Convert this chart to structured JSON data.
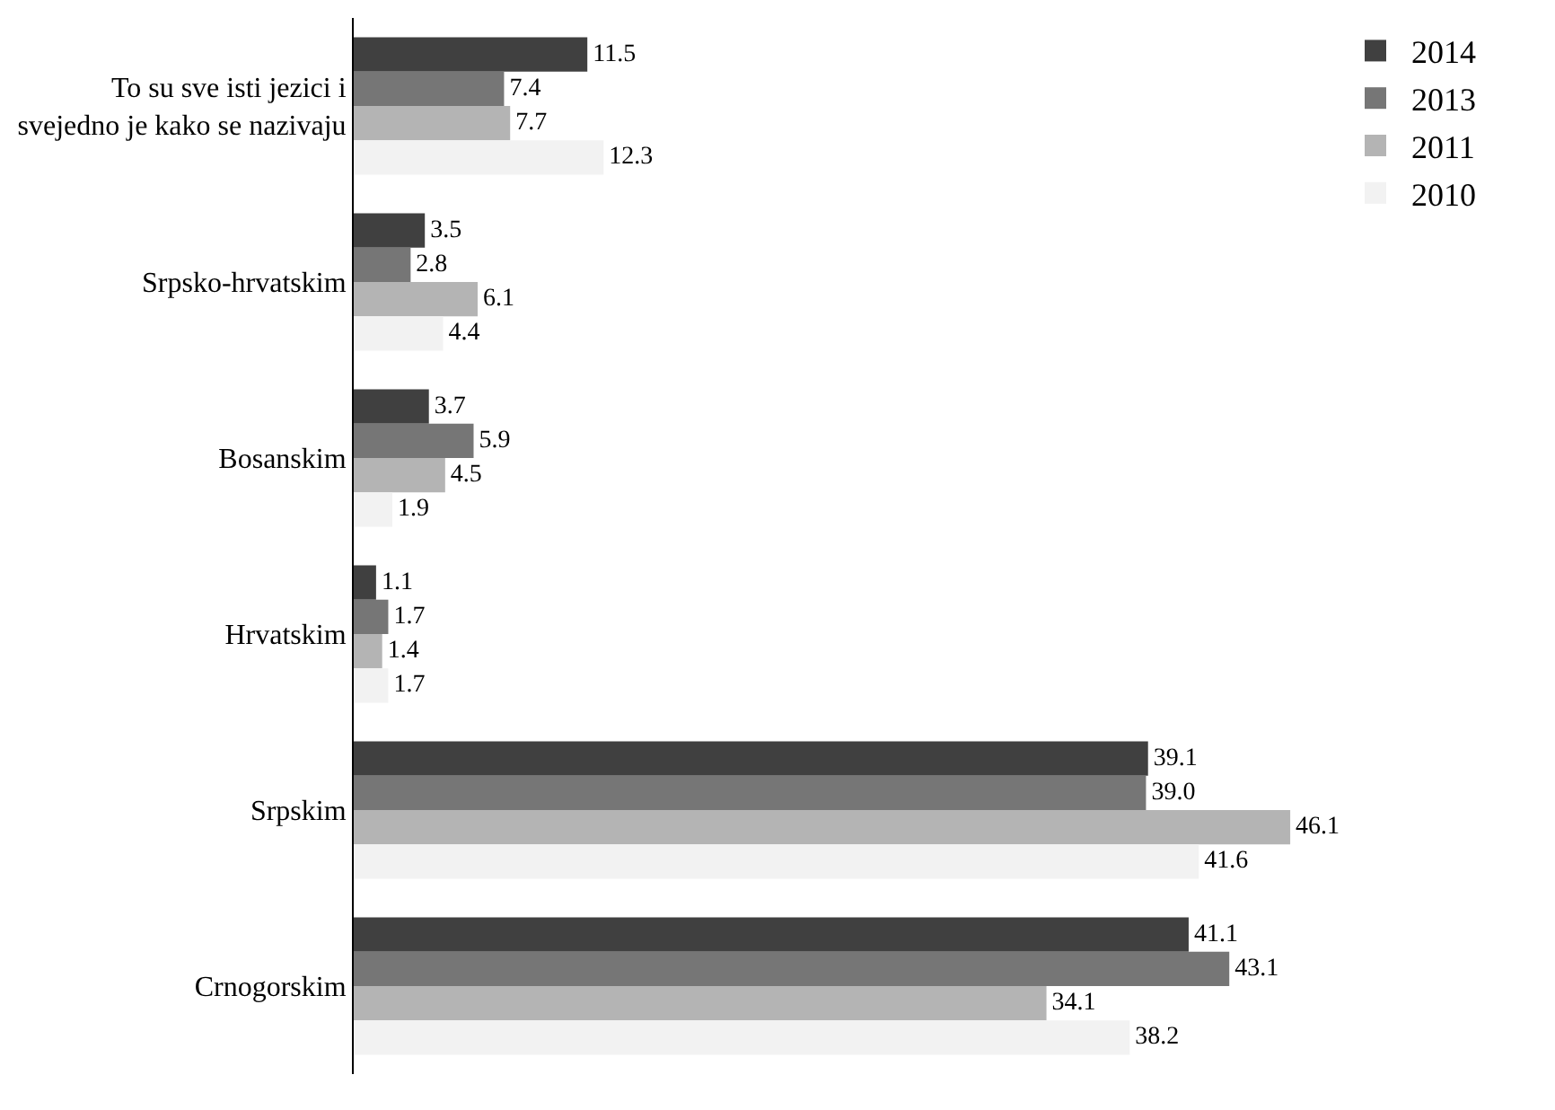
{
  "chart_data": {
    "type": "bar",
    "orientation": "horizontal",
    "legend": "top right",
    "tick_labels": "y",
    "categories": [
      "To su sve isti jezici i svejedno je kako se nazivaju",
      "Srpsko-hrvatskim",
      "Bosanskim",
      "Hrvatskim",
      "Srpskim",
      "Crnogorskim"
    ],
    "series": [
      {
        "name": "2014",
        "color": "#404040",
        "values": [
          11.5,
          3.5,
          3.7,
          1.1,
          39.1,
          41.1
        ],
        "value_labels": [
          "11.5",
          "3.5",
          "3.7",
          "1.1",
          "39.1",
          "41.1"
        ]
      },
      {
        "name": "2013",
        "color": "#767676",
        "values": [
          7.4,
          2.8,
          5.9,
          1.7,
          39.0,
          43.1
        ],
        "value_labels": [
          "7.4",
          "2.8",
          "5.9",
          "1.7",
          "39.0",
          "43.1"
        ]
      },
      {
        "name": "2011",
        "color": "#b4b4b4",
        "values": [
          7.7,
          6.1,
          4.5,
          1.4,
          46.1,
          34.1
        ],
        "value_labels": [
          "7.7",
          "6.1",
          "4.5",
          "1.4",
          "46.1",
          "34.1"
        ]
      },
      {
        "name": "2010",
        "color": "#f2f2f2",
        "values": [
          12.3,
          4.4,
          1.9,
          1.7,
          41.6,
          38.2
        ],
        "value_labels": [
          "12.3",
          "4.4",
          "1.9",
          "1.7",
          "41.6",
          "38.2"
        ]
      }
    ]
  }
}
